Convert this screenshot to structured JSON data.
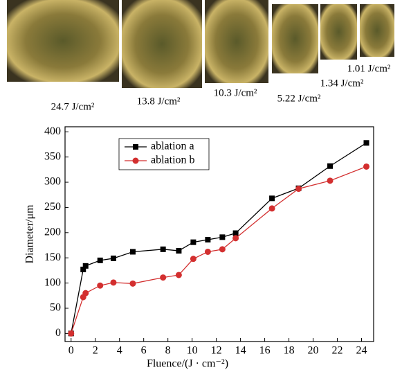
{
  "image_labels": [
    "24.7 J/cm²",
    "13.8 J/cm²",
    "10.3 J/cm²",
    "5.22 J/cm²",
    "1.34 J/cm²",
    "1.01 J/cm²"
  ],
  "chart_data": {
    "type": "line",
    "x_label": "Fluence/(J · cm⁻²)",
    "y_label": "Diameter/μm",
    "x": [
      0,
      1.0,
      1.2,
      2.4,
      3.5,
      5.1,
      7.6,
      8.9,
      10.1,
      11.3,
      12.5,
      13.6,
      16.6,
      18.8,
      21.4,
      24.4
    ],
    "series": [
      {
        "name": "ablation a",
        "color": "#000000",
        "marker": "square",
        "values": [
          0,
          127,
          134,
          145,
          149,
          162,
          167,
          164,
          181,
          186,
          191,
          199,
          268,
          288,
          332,
          378
        ]
      },
      {
        "name": "ablation b",
        "color": "#d32f2f",
        "marker": "circle",
        "values": [
          0,
          72,
          80,
          95,
          101,
          99,
          111,
          116,
          148,
          162,
          167,
          189,
          248,
          287,
          303,
          331
        ]
      }
    ],
    "xlim": [
      -0.5,
      25
    ],
    "ylim": [
      -16,
      410
    ],
    "xticks": [
      0,
      2,
      4,
      6,
      8,
      10,
      12,
      14,
      16,
      18,
      20,
      22,
      24
    ],
    "yticks": [
      0,
      50,
      100,
      150,
      200,
      250,
      300,
      350,
      400
    ]
  }
}
